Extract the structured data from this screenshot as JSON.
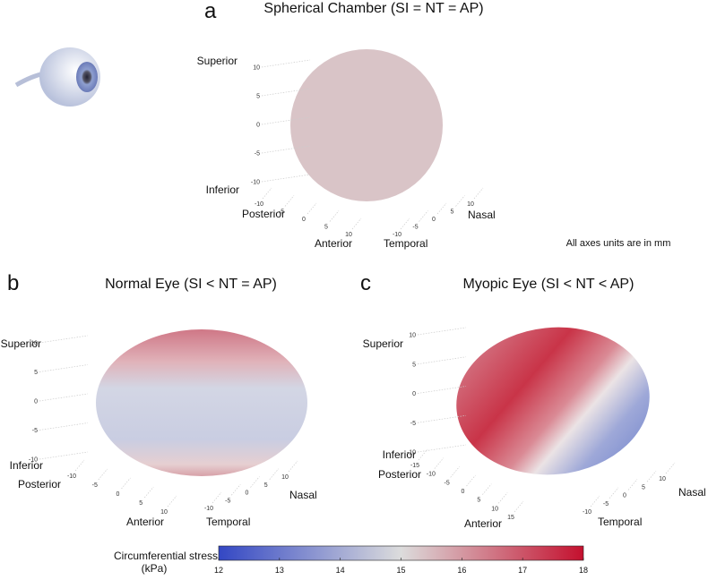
{
  "panels": [
    {
      "letter": "a",
      "title": "Spherical Chamber (SI = NT = AP)",
      "superior": "Superior",
      "inferior": "Inferior",
      "posterior": "Posterior",
      "anterior": "Anterior",
      "nasal": "Nasal",
      "temporal": "Temporal",
      "zticks": [
        10,
        5,
        0,
        -5,
        -10
      ],
      "xticks": [
        -10,
        -5,
        0,
        5,
        10
      ],
      "yticks": [
        -10,
        -5,
        0,
        5,
        10
      ]
    },
    {
      "letter": "b",
      "title": "Normal Eye (SI < NT = AP)",
      "superior": "Superior",
      "inferior": "Inferior",
      "posterior": "Posterior",
      "anterior": "Anterior",
      "nasal": "Nasal",
      "temporal": "Temporal",
      "zticks": [
        10,
        5,
        0,
        -5,
        -10
      ],
      "xticks": [
        -10,
        -5,
        0,
        5,
        10
      ],
      "yticks": [
        -10,
        -5,
        0,
        5,
        10
      ]
    },
    {
      "letter": "c",
      "title": "Myopic Eye (SI < NT < AP)",
      "superior": "Superior",
      "inferior": "Inferior",
      "posterior": "Posterior",
      "anterior": "Anterior",
      "nasal": "Nasal",
      "temporal": "Temporal",
      "zticks": [
        10,
        5,
        0,
        -5,
        -10
      ],
      "xticks": [
        -15,
        -10,
        -5,
        0,
        5,
        10,
        15
      ],
      "yticks": [
        -10,
        -5,
        0,
        5,
        10
      ]
    }
  ],
  "note": "All axes units are in mm",
  "colorbar": {
    "label": [
      "Circumferential stress",
      "(kPa)"
    ],
    "range": [
      12,
      18
    ],
    "ticks": [
      12,
      13,
      14,
      15,
      16,
      17,
      18
    ],
    "colors": [
      "#3347c4",
      "#dcdcdc",
      "#c4102e"
    ]
  }
}
